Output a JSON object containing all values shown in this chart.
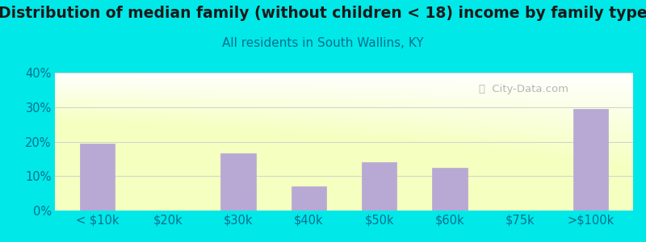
{
  "title": "Distribution of median family (without children < 18) income by family type",
  "subtitle": "All residents in South Wallins, KY",
  "categories": [
    "< $10k",
    "$20k",
    "$30k",
    "$40k",
    "$50k",
    "$60k",
    "$75k",
    ">$100k"
  ],
  "values": [
    19.5,
    0,
    16.5,
    7.0,
    14.0,
    12.5,
    0,
    29.5
  ],
  "bar_color": "#b8a9d4",
  "background_outer": "#00e8e8",
  "title_color": "#1a1a1a",
  "subtitle_color": "#007090",
  "tick_color": "#007090",
  "grid_color": "#d0d0d0",
  "ylim": [
    0,
    40
  ],
  "yticks": [
    0,
    10,
    20,
    30,
    40
  ],
  "ytick_labels": [
    "0%",
    "10%",
    "20%",
    "30%",
    "40%"
  ],
  "title_fontsize": 13.5,
  "subtitle_fontsize": 11,
  "tick_fontsize": 10.5,
  "watermark_text": " City-Data.com"
}
